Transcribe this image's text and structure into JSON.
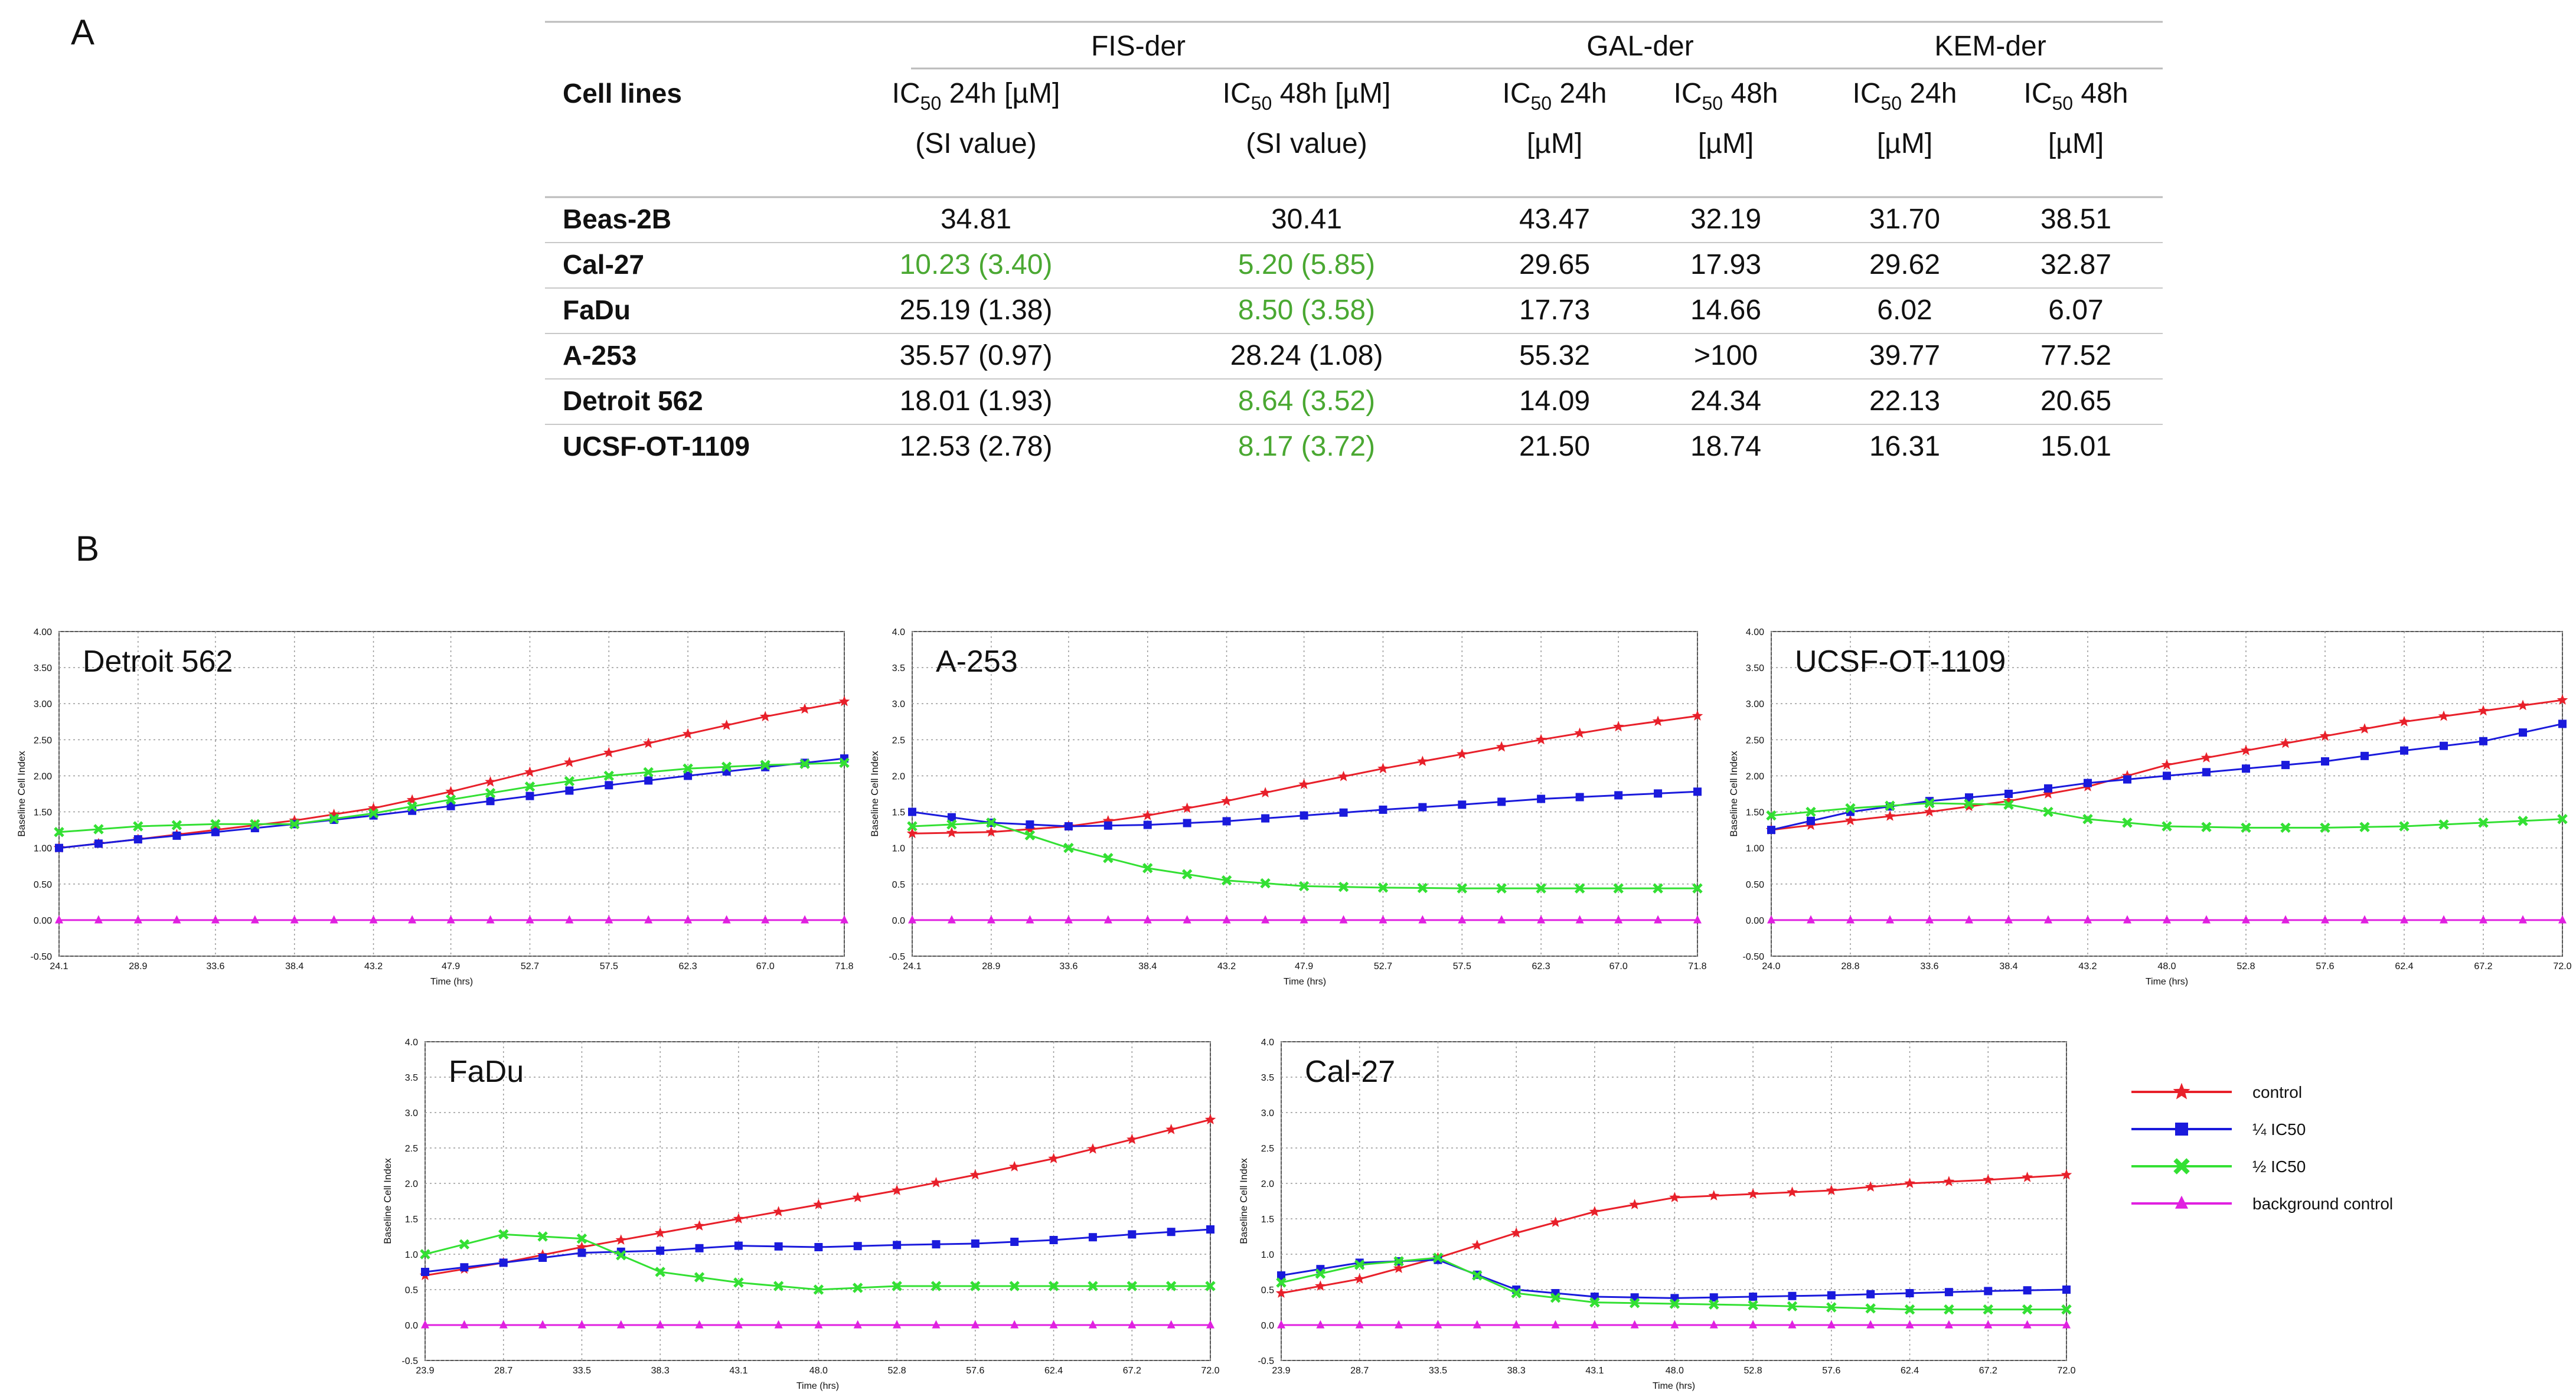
{
  "panel_labels": {
    "a": "A",
    "b": "B"
  },
  "table": {
    "groups": [
      "FIS-der",
      "GAL-der",
      "KEM-der"
    ],
    "row_header": "Cell lines",
    "columns": [
      {
        "l1": "IC",
        "sub": "50",
        "l1b": " 24h [µM]",
        "l2": "(SI value)"
      },
      {
        "l1": "IC",
        "sub": "50",
        "l1b": " 48h [µM]",
        "l2": "(SI value)"
      },
      {
        "l1": "IC",
        "sub": "50",
        "l1b": " 24h",
        "l2": "[µM]"
      },
      {
        "l1": "IC",
        "sub": "50",
        "l1b": " 48h",
        "l2": "[µM]"
      },
      {
        "l1": "IC",
        "sub": "50",
        "l1b": " 24h",
        "l2": "[µM]"
      },
      {
        "l1": "IC",
        "sub": "50",
        "l1b": " 48h",
        "l2": "[µM]"
      }
    ],
    "highlight_color": "#4aa832",
    "rows": [
      {
        "name": "Beas-2B",
        "cells": [
          "34.81",
          "30.41",
          "43.47",
          "32.19",
          "31.70",
          "38.51"
        ],
        "green": [
          false,
          false,
          false,
          false,
          false,
          false
        ]
      },
      {
        "name": "Cal-27",
        "cells": [
          "10.23 (3.40)",
          "5.20 (5.85)",
          "29.65",
          "17.93",
          "29.62",
          "32.87"
        ],
        "green": [
          true,
          true,
          false,
          false,
          false,
          false
        ]
      },
      {
        "name": "FaDu",
        "cells": [
          "25.19 (1.38)",
          "8.50 (3.58)",
          "17.73",
          "14.66",
          "6.02",
          "6.07"
        ],
        "green": [
          false,
          true,
          false,
          false,
          false,
          false
        ]
      },
      {
        "name": "A-253",
        "cells": [
          "35.57 (0.97)",
          "28.24 (1.08)",
          "55.32",
          ">100",
          "39.77",
          "77.52"
        ],
        "green": [
          false,
          false,
          false,
          false,
          false,
          false
        ]
      },
      {
        "name": "Detroit 562",
        "cells": [
          "18.01 (1.93)",
          "8.64 (3.52)",
          "14.09",
          "24.34",
          "22.13",
          "20.65"
        ],
        "green": [
          false,
          true,
          false,
          false,
          false,
          false
        ]
      },
      {
        "name": "UCSF-OT-1109",
        "cells": [
          "12.53 (2.78)",
          "8.17 (3.72)",
          "21.50",
          "18.74",
          "16.31",
          "15.01"
        ],
        "green": [
          false,
          true,
          false,
          false,
          false,
          false
        ]
      }
    ]
  },
  "legend": {
    "entries": [
      {
        "label": "control",
        "color": "#e8202a",
        "marker": "star"
      },
      {
        "label": "¼ IC50",
        "color": "#1a1adc",
        "marker": "square"
      },
      {
        "label": "½ IC50",
        "color": "#33e033",
        "marker": "cross"
      },
      {
        "label": "background control",
        "color": "#e020e0",
        "marker": "triangle"
      }
    ]
  },
  "chart_data": [
    {
      "type": "line",
      "title": "Detroit 562",
      "xlabel": "Time (hrs)",
      "ylabel": "Baseline Cell Index",
      "xlim": [
        24.1,
        71.8
      ],
      "ylim": [
        -0.5,
        4.0
      ],
      "x_ticks": [
        "24.1",
        "28.9",
        "33.6",
        "38.4",
        "43.2",
        "47.9",
        "52.7",
        "57.5",
        "62.3",
        "67.0",
        "71.8"
      ],
      "y_ticks": [
        "-0.50",
        "0.00",
        "0.50",
        "1.00",
        "1.50",
        "2.00",
        "2.50",
        "3.00",
        "3.50",
        "4.00"
      ],
      "grid": true,
      "series": [
        {
          "name": "control",
          "x": [
            24.1,
            28.9,
            33.6,
            38.4,
            43.2,
            47.9,
            52.7,
            57.5,
            62.3,
            67.0,
            71.8
          ],
          "values": [
            1.0,
            1.12,
            1.25,
            1.38,
            1.55,
            1.78,
            2.05,
            2.32,
            2.58,
            2.82,
            3.03
          ]
        },
        {
          "name": "¼ IC50",
          "x": [
            24.1,
            28.9,
            33.6,
            38.4,
            43.2,
            47.9,
            52.7,
            57.5,
            62.3,
            67.0,
            71.8
          ],
          "values": [
            1.0,
            1.12,
            1.22,
            1.33,
            1.45,
            1.58,
            1.72,
            1.87,
            2.0,
            2.12,
            2.24
          ]
        },
        {
          "name": "½ IC50",
          "x": [
            24.1,
            28.9,
            33.6,
            38.4,
            43.2,
            47.9,
            52.7,
            57.5,
            62.3,
            67.0,
            71.8
          ],
          "values": [
            1.22,
            1.3,
            1.33,
            1.33,
            1.48,
            1.67,
            1.85,
            2.0,
            2.1,
            2.15,
            2.18
          ]
        },
        {
          "name": "background control",
          "x": [
            24.1,
            28.9,
            33.6,
            38.4,
            43.2,
            47.9,
            52.7,
            57.5,
            62.3,
            67.0,
            71.8
          ],
          "values": [
            0,
            0,
            0,
            0,
            0,
            0,
            0,
            0,
            0,
            0,
            0
          ]
        }
      ]
    },
    {
      "type": "line",
      "title": "A-253",
      "xlabel": "Time (hrs)",
      "ylabel": "Baseline Cell Index",
      "xlim": [
        24.1,
        71.8
      ],
      "ylim": [
        -0.5,
        4.0
      ],
      "x_ticks": [
        "24.1",
        "28.9",
        "33.6",
        "38.4",
        "43.2",
        "47.9",
        "52.7",
        "57.5",
        "62.3",
        "67.0",
        "71.8"
      ],
      "y_ticks": [
        "-0.5",
        "0.0",
        "0.5",
        "1.0",
        "1.5",
        "2.0",
        "2.5",
        "3.0",
        "3.5",
        "4.0"
      ],
      "grid": true,
      "series": [
        {
          "name": "control",
          "x": [
            24.1,
            28.9,
            33.6,
            38.4,
            43.2,
            47.9,
            52.7,
            57.5,
            62.3,
            67.0,
            71.8
          ],
          "values": [
            1.2,
            1.22,
            1.3,
            1.45,
            1.65,
            1.88,
            2.1,
            2.3,
            2.5,
            2.68,
            2.83
          ]
        },
        {
          "name": "¼ IC50",
          "x": [
            24.1,
            28.9,
            33.6,
            38.4,
            43.2,
            47.9,
            52.7,
            57.5,
            62.3,
            67.0,
            71.8
          ],
          "values": [
            1.5,
            1.35,
            1.3,
            1.32,
            1.37,
            1.45,
            1.53,
            1.6,
            1.68,
            1.73,
            1.78
          ]
        },
        {
          "name": "½ IC50",
          "x": [
            24.1,
            28.9,
            33.6,
            38.4,
            43.2,
            47.9,
            52.7,
            57.5,
            62.3,
            67.0,
            71.8
          ],
          "values": [
            1.3,
            1.35,
            1.0,
            0.72,
            0.55,
            0.47,
            0.45,
            0.44,
            0.44,
            0.44,
            0.44
          ]
        },
        {
          "name": "background control",
          "x": [
            24.1,
            28.9,
            33.6,
            38.4,
            43.2,
            47.9,
            52.7,
            57.5,
            62.3,
            67.0,
            71.8
          ],
          "values": [
            0,
            0,
            0,
            0,
            0,
            0,
            0,
            0,
            0,
            0,
            0
          ]
        }
      ]
    },
    {
      "type": "line",
      "title": "UCSF-OT-1109",
      "xlabel": "Time (hrs)",
      "ylabel": "Baseline Cell Index",
      "xlim": [
        24.0,
        72.0
      ],
      "ylim": [
        -0.5,
        4.0
      ],
      "x_ticks": [
        "24.0",
        "28.8",
        "33.6",
        "38.4",
        "43.2",
        "48.0",
        "52.8",
        "57.6",
        "62.4",
        "67.2",
        "72.0"
      ],
      "y_ticks": [
        "-0.50",
        "0.00",
        "0.50",
        "1.00",
        "1.50",
        "2.00",
        "2.50",
        "3.00",
        "3.50",
        "4.00"
      ],
      "grid": true,
      "series": [
        {
          "name": "control",
          "x": [
            24.0,
            28.8,
            33.6,
            38.4,
            43.2,
            48.0,
            52.8,
            57.6,
            62.4,
            67.2,
            72.0
          ],
          "values": [
            1.25,
            1.38,
            1.5,
            1.65,
            1.85,
            2.15,
            2.35,
            2.55,
            2.75,
            2.9,
            3.05
          ]
        },
        {
          "name": "¼ IC50",
          "x": [
            24.0,
            28.8,
            33.6,
            38.4,
            43.2,
            48.0,
            52.8,
            57.6,
            62.4,
            67.2,
            72.0
          ],
          "values": [
            1.25,
            1.5,
            1.65,
            1.75,
            1.9,
            2.0,
            2.1,
            2.2,
            2.35,
            2.48,
            2.72
          ]
        },
        {
          "name": "½ IC50",
          "x": [
            24.0,
            28.8,
            33.6,
            38.4,
            43.2,
            48.0,
            52.8,
            57.6,
            62.4,
            67.2,
            72.0
          ],
          "values": [
            1.45,
            1.55,
            1.62,
            1.6,
            1.4,
            1.3,
            1.28,
            1.28,
            1.3,
            1.35,
            1.4
          ]
        },
        {
          "name": "background control",
          "x": [
            24.0,
            28.8,
            33.6,
            38.4,
            43.2,
            48.0,
            52.8,
            57.6,
            62.4,
            67.2,
            72.0
          ],
          "values": [
            0,
            0,
            0,
            0,
            0,
            0,
            0,
            0,
            0,
            0,
            0
          ]
        }
      ]
    },
    {
      "type": "line",
      "title": "FaDu",
      "xlabel": "Time (hrs)",
      "ylabel": "Baseline Cell Index",
      "xlim": [
        23.9,
        72.0
      ],
      "ylim": [
        -0.5,
        4.0
      ],
      "x_ticks": [
        "23.9",
        "28.7",
        "33.5",
        "38.3",
        "43.1",
        "48.0",
        "52.8",
        "57.6",
        "62.4",
        "67.2",
        "72.0"
      ],
      "y_ticks": [
        "-0.5",
        "0.0",
        "0.5",
        "1.0",
        "1.5",
        "2.0",
        "2.5",
        "3.0",
        "3.5",
        "4.0"
      ],
      "grid": true,
      "series": [
        {
          "name": "control",
          "x": [
            23.9,
            28.7,
            33.5,
            38.3,
            43.1,
            48.0,
            52.8,
            57.6,
            62.4,
            67.2,
            72.0
          ],
          "values": [
            0.7,
            0.88,
            1.1,
            1.3,
            1.5,
            1.7,
            1.9,
            2.12,
            2.35,
            2.62,
            2.9
          ]
        },
        {
          "name": "¼ IC50",
          "x": [
            23.9,
            28.7,
            33.5,
            38.3,
            43.1,
            48.0,
            52.8,
            57.6,
            62.4,
            67.2,
            72.0
          ],
          "values": [
            0.75,
            0.88,
            1.02,
            1.05,
            1.12,
            1.1,
            1.13,
            1.15,
            1.2,
            1.28,
            1.35
          ]
        },
        {
          "name": "½ IC50",
          "x": [
            23.9,
            28.7,
            33.5,
            38.3,
            43.1,
            48.0,
            52.8,
            57.6,
            62.4,
            67.2,
            72.0
          ],
          "values": [
            1.0,
            1.28,
            1.22,
            0.75,
            0.6,
            0.5,
            0.55,
            0.55,
            0.55,
            0.55,
            0.55
          ]
        },
        {
          "name": "background control",
          "x": [
            23.9,
            28.7,
            33.5,
            38.3,
            43.1,
            48.0,
            52.8,
            57.6,
            62.4,
            67.2,
            72.0
          ],
          "values": [
            0,
            0,
            0,
            0,
            0,
            0,
            0,
            0,
            0,
            0,
            0
          ]
        }
      ]
    },
    {
      "type": "line",
      "title": "Cal-27",
      "xlabel": "Time (hrs)",
      "ylabel": "Baseline Cell Index",
      "xlim": [
        23.9,
        72.0
      ],
      "ylim": [
        -0.5,
        4.0
      ],
      "x_ticks": [
        "23.9",
        "28.7",
        "33.5",
        "38.3",
        "43.1",
        "48.0",
        "52.8",
        "57.6",
        "62.4",
        "67.2",
        "72.0"
      ],
      "y_ticks": [
        "-0.5",
        "0.0",
        "0.5",
        "1.0",
        "1.5",
        "2.0",
        "2.5",
        "3.0",
        "3.5",
        "4.0"
      ],
      "grid": true,
      "series": [
        {
          "name": "control",
          "x": [
            23.9,
            28.7,
            33.5,
            38.3,
            43.1,
            48.0,
            52.8,
            57.6,
            62.4,
            67.2,
            72.0
          ],
          "values": [
            0.45,
            0.65,
            0.95,
            1.3,
            1.6,
            1.8,
            1.85,
            1.9,
            2.0,
            2.05,
            2.12
          ]
        },
        {
          "name": "¼ IC50",
          "x": [
            23.9,
            28.7,
            33.5,
            38.3,
            43.1,
            48.0,
            52.8,
            57.6,
            62.4,
            67.2,
            72.0
          ],
          "values": [
            0.7,
            0.88,
            0.92,
            0.5,
            0.4,
            0.38,
            0.4,
            0.42,
            0.45,
            0.48,
            0.5
          ]
        },
        {
          "name": "½ IC50",
          "x": [
            23.9,
            28.7,
            33.5,
            38.3,
            43.1,
            48.0,
            52.8,
            57.6,
            62.4,
            67.2,
            72.0
          ],
          "values": [
            0.6,
            0.85,
            0.95,
            0.45,
            0.32,
            0.3,
            0.28,
            0.25,
            0.22,
            0.22,
            0.22
          ]
        },
        {
          "name": "background control",
          "x": [
            23.9,
            28.7,
            33.5,
            38.3,
            43.1,
            48.0,
            52.8,
            57.6,
            62.4,
            67.2,
            72.0
          ],
          "values": [
            0,
            0,
            0,
            0,
            0,
            0,
            0,
            0,
            0,
            0,
            0
          ]
        }
      ]
    }
  ]
}
